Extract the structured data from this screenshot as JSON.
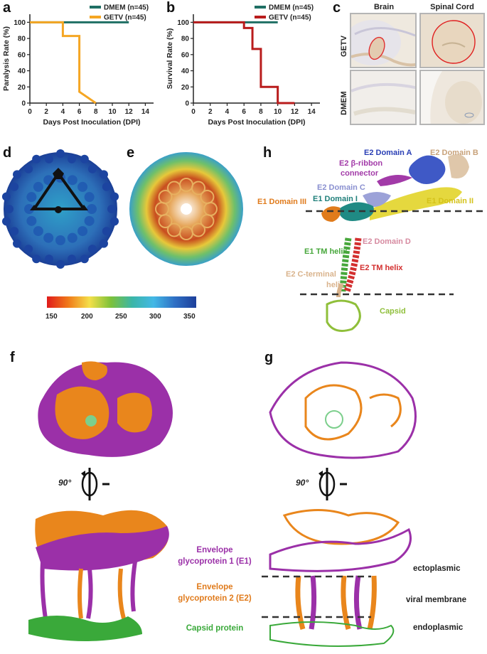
{
  "panels": {
    "a": "a",
    "b": "b",
    "c": "c",
    "d": "d",
    "e": "e",
    "f": "f",
    "g": "g",
    "h": "h"
  },
  "colors": {
    "dmem": "#1f6f64",
    "getv_a": "#f5a623",
    "getv_b": "#b91c1c",
    "e1": "#9b30a8",
    "e2": "#e9861c",
    "capsid": "#3aa93a"
  },
  "chart_data": [
    {
      "type": "line",
      "panel": "a",
      "xlabel": "Days Post Inoculation (DPI)",
      "ylabel": "Paralysis Rate (%)",
      "xlim": [
        0,
        15
      ],
      "ylim": [
        0,
        110
      ],
      "xticks": [
        "0",
        "2",
        "4",
        "6",
        "8",
        "10",
        "12",
        "14"
      ],
      "yticks": [
        "0",
        "20",
        "40",
        "60",
        "80",
        "100"
      ],
      "legend": "top-right",
      "series": [
        {
          "name": "DMEM (n=45)",
          "x": [
            0,
            12
          ],
          "y": [
            100,
            100
          ],
          "step": true
        },
        {
          "name": "GETV (n=45)",
          "x": [
            0,
            4,
            4,
            6,
            6,
            8
          ],
          "y": [
            100,
            100,
            83,
            83,
            14,
            0
          ],
          "step": true
        }
      ]
    },
    {
      "type": "line",
      "panel": "b",
      "xlabel": "Days Post Inoculation (DPI)",
      "ylabel": "Survival Rate (%)",
      "xlim": [
        0,
        15
      ],
      "ylim": [
        0,
        110
      ],
      "xticks": [
        "0",
        "2",
        "4",
        "6",
        "8",
        "10",
        "12",
        "14"
      ],
      "yticks": [
        "0",
        "20",
        "40",
        "60",
        "80",
        "100"
      ],
      "legend": "top-right",
      "series": [
        {
          "name": "DMEM (n=45)",
          "x": [
            0,
            10
          ],
          "y": [
            100,
            100
          ],
          "step": true
        },
        {
          "name": "GETV (n=45)",
          "x": [
            0,
            6,
            6,
            7,
            7,
            8,
            8,
            10,
            10,
            12
          ],
          "y": [
            100,
            100,
            93,
            93,
            67,
            67,
            20,
            20,
            0,
            0
          ],
          "step": true
        }
      ]
    }
  ],
  "panel_c": {
    "col_headers": [
      "Brain",
      "Spinal Cord"
    ],
    "row_labels": [
      "GETV",
      "DMEM"
    ]
  },
  "colorbar": {
    "ticks": [
      "150",
      "200",
      "250",
      "300",
      "350"
    ]
  },
  "panel_h": {
    "labels": [
      {
        "text": "E2 Domain A",
        "color": "#2a3fb5"
      },
      {
        "text": "E2 Domain B",
        "color": "#c8a27a"
      },
      {
        "text": "E2 β-ribbon",
        "color": "#a23aa8"
      },
      {
        "text": "connector",
        "color": "#a23aa8"
      },
      {
        "text": "E2 Domain C",
        "color": "#8a90d0"
      },
      {
        "text": "E1 Domain I",
        "color": "#1f7f7a"
      },
      {
        "text": "E1 Domain III",
        "color": "#e07b1c"
      },
      {
        "text": "E1 Domain II",
        "color": "#d4c21a"
      },
      {
        "text": "E2 Domain D",
        "color": "#d68aa0"
      },
      {
        "text": "E1 TM helix",
        "color": "#47a73b"
      },
      {
        "text": "E2 TM helix",
        "color": "#d32f2f"
      },
      {
        "text": "E2 C-terminal",
        "color": "#d9b38c"
      },
      {
        "text": "helix",
        "color": "#d9b38c"
      },
      {
        "text": "Capsid",
        "color": "#8fbf3a"
      }
    ]
  },
  "rotation": "90°",
  "legend_f": {
    "e1_line1": "Envelope",
    "e1_line2": "glycoprotein 1 (E1)",
    "e2_line1": "Envelope",
    "e2_line2": "glycoprotein 2 (E2)",
    "capsid": "Capsid protein"
  },
  "membrane": {
    "ecto": "ectoplasmic",
    "viral": "viral membrane",
    "endo": "endoplasmic"
  }
}
